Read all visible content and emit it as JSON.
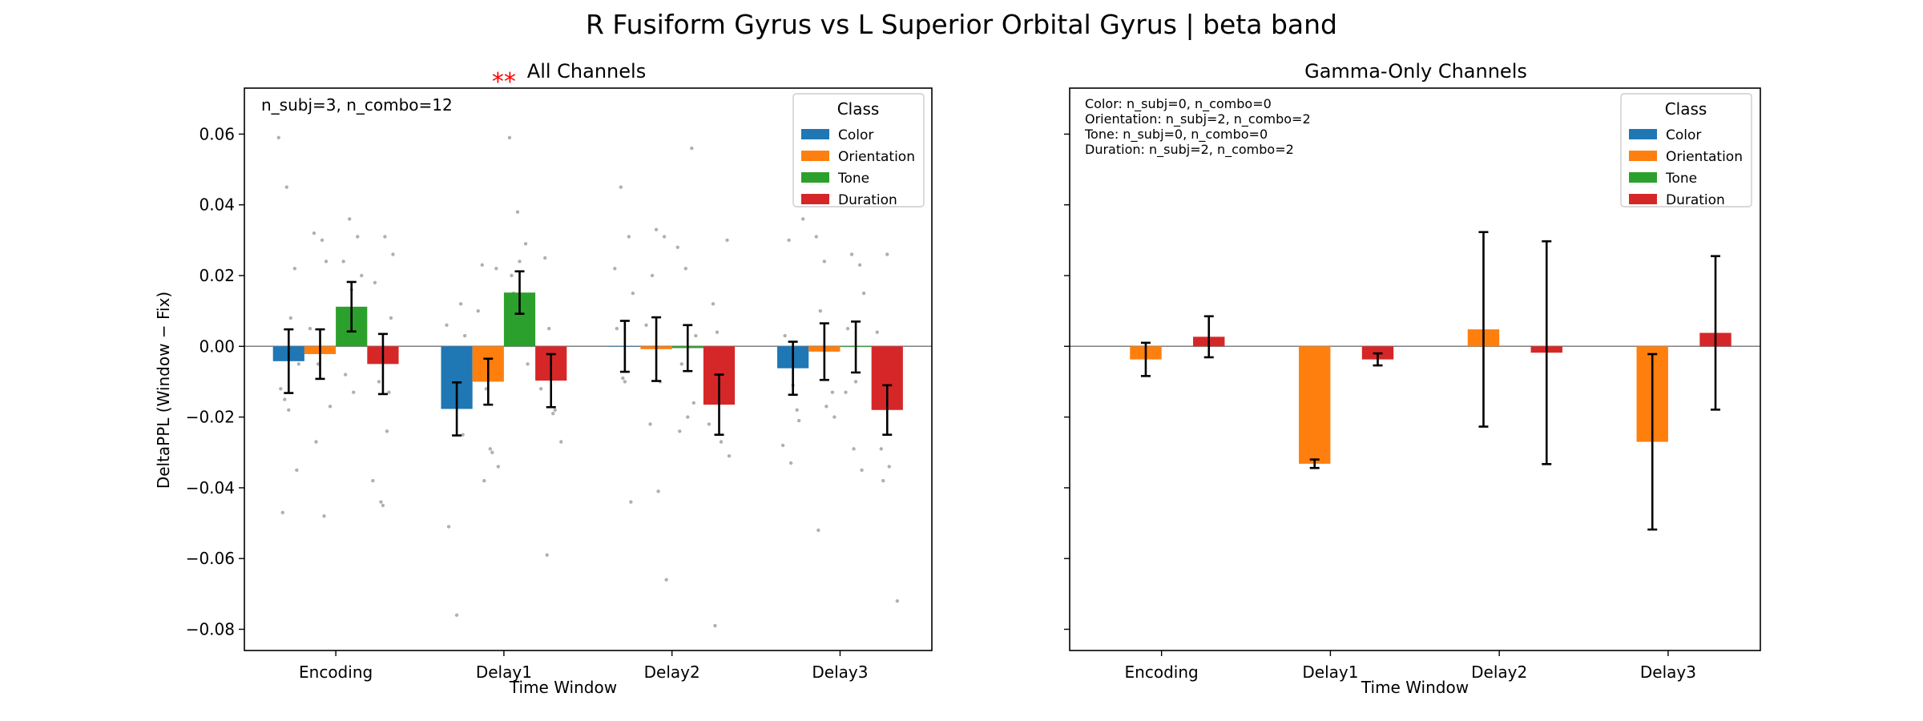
{
  "figure": {
    "title": "R Fusiform Gyrus vs L Superior Orbital Gyrus  |  beta band"
  },
  "legend": {
    "title": "Class",
    "items": [
      "Color",
      "Orientation",
      "Tone",
      "Duration"
    ]
  },
  "colors": {
    "Color": "#1f77b4",
    "Orientation": "#ff7f0e",
    "Tone": "#2ca02c",
    "Duration": "#d62728",
    "significance": "#ff0000",
    "scatter": "#b0b0b0"
  },
  "chart_data": [
    {
      "type": "bar",
      "title": "All Channels",
      "xlabel": "Time Window",
      "ylabel": "DeltaPPL (Window − Fix)",
      "ylim": [
        -0.086,
        0.073
      ],
      "yticks": [
        -0.08,
        -0.06,
        -0.04,
        -0.02,
        0.0,
        0.02,
        0.04,
        0.06
      ],
      "ytick_labels": [
        "−0.08",
        "−0.06",
        "−0.04",
        "−0.02",
        "0.00",
        "0.02",
        "0.04",
        "0.06"
      ],
      "categories": [
        "Encoding",
        "Delay1",
        "Delay2",
        "Delay3"
      ],
      "legend_position": "top-right",
      "annotation": "n_subj=3, n_combo=12",
      "significance": [
        {
          "category": "Delay1",
          "label": "**"
        }
      ],
      "series": [
        {
          "name": "Color",
          "values": [
            -0.0042,
            -0.0177,
            0.0,
            -0.0062
          ],
          "err": [
            0.009,
            0.0075,
            0.0072,
            0.0075
          ]
        },
        {
          "name": "Orientation",
          "values": [
            -0.0022,
            -0.01,
            -0.0008,
            -0.0015
          ],
          "err": [
            0.007,
            0.0065,
            0.009,
            0.008
          ]
        },
        {
          "name": "Tone",
          "values": [
            0.0112,
            0.0152,
            -0.0005,
            -0.0002
          ],
          "err": [
            0.007,
            0.006,
            0.0065,
            0.0072
          ]
        },
        {
          "name": "Duration",
          "values": [
            -0.005,
            -0.0097,
            -0.0165,
            -0.018
          ],
          "err": [
            0.0085,
            0.0075,
            0.0085,
            0.007
          ]
        }
      ],
      "points": [
        [
          [
            0.059,
            0.045,
            0.022,
            -0.012,
            -0.018,
            -0.035,
            -0.047,
            0.008,
            -0.005,
            -0.015
          ],
          [
            0.032,
            0.03,
            -0.017,
            -0.027,
            -0.048,
            0.005,
            -0.005,
            0.024
          ],
          [
            0.036,
            0.031,
            0.024,
            0.016,
            0.008,
            -0.008,
            -0.013,
            0.02
          ],
          [
            0.031,
            0.026,
            -0.01,
            -0.024,
            -0.038,
            -0.044,
            -0.013,
            0.018,
            -0.045,
            0.008
          ]
        ],
        [
          [
            0.012,
            0.006,
            -0.015,
            -0.025,
            -0.051,
            -0.076,
            0.003,
            -0.009
          ],
          [
            0.022,
            0.023,
            -0.029,
            -0.034,
            -0.038,
            -0.03,
            0.01,
            -0.012
          ],
          [
            0.059,
            0.038,
            0.029,
            0.02,
            0.024,
            -0.005,
            0.015
          ],
          [
            0.025,
            -0.019,
            -0.027,
            -0.059,
            -0.018,
            -0.012,
            0.005
          ]
        ],
        [
          [
            0.045,
            0.031,
            0.022,
            -0.009,
            -0.044,
            0.005,
            -0.01,
            0.015
          ],
          [
            0.033,
            0.031,
            -0.022,
            -0.041,
            -0.066,
            0.02,
            -0.01,
            0.006
          ],
          [
            0.056,
            0.028,
            0.022,
            -0.016,
            -0.024,
            -0.02,
            0.003,
            -0.005
          ],
          [
            0.03,
            0.012,
            -0.027,
            -0.031,
            -0.079,
            -0.013,
            -0.022,
            0.004
          ]
        ],
        [
          [
            0.036,
            0.03,
            -0.018,
            -0.028,
            -0.033,
            -0.021,
            0.003,
            -0.011
          ],
          [
            0.031,
            0.024,
            -0.013,
            -0.052,
            -0.017,
            -0.02,
            0.01
          ],
          [
            0.026,
            0.023,
            -0.013,
            -0.029,
            -0.035,
            0.005,
            -0.01,
            0.015
          ],
          [
            0.026,
            -0.011,
            -0.029,
            -0.034,
            -0.072,
            -0.038,
            -0.009,
            0.004
          ]
        ]
      ]
    },
    {
      "type": "bar",
      "title": "Gamma-Only Channels",
      "xlabel": "Time Window",
      "ylim": [
        -0.086,
        0.073
      ],
      "yticks": [
        -0.08,
        -0.06,
        -0.04,
        -0.02,
        0.0,
        0.02,
        0.04,
        0.06
      ],
      "categories": [
        "Encoding",
        "Delay1",
        "Delay2",
        "Delay3"
      ],
      "legend_position": "top-right",
      "annotation_lines": [
        "Color: n_subj=0, n_combo=0",
        "Orientation: n_subj=2, n_combo=2",
        "Tone: n_subj=0, n_combo=0",
        "Duration: n_subj=2, n_combo=2"
      ],
      "series": [
        {
          "name": "Color",
          "values": [
            null,
            null,
            null,
            null
          ],
          "err": [
            null,
            null,
            null,
            null
          ]
        },
        {
          "name": "Orientation",
          "values": [
            -0.0037,
            -0.0332,
            0.0048,
            -0.027
          ],
          "err": [
            0.0047,
            0.0012,
            0.0275,
            0.0248
          ]
        },
        {
          "name": "Tone",
          "values": [
            null,
            null,
            null,
            null
          ],
          "err": [
            null,
            null,
            null,
            null
          ]
        },
        {
          "name": "Duration",
          "values": [
            0.0027,
            -0.0037,
            -0.0018,
            0.0038
          ],
          "err": [
            0.0058,
            0.0017,
            0.0315,
            0.0217
          ]
        }
      ]
    }
  ]
}
